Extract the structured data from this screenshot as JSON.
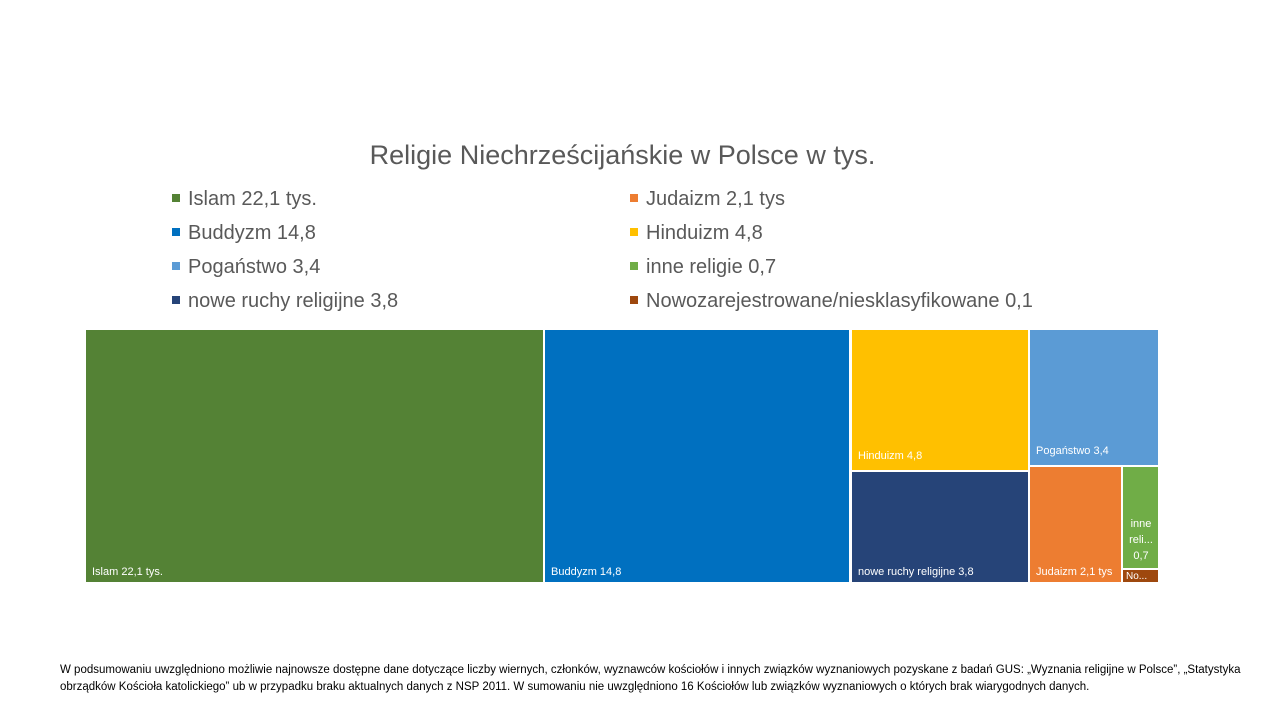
{
  "chart_data": {
    "type": "treemap",
    "title": "Religie Niechrześcijańskie w Polsce w tys.",
    "legend_placement": "top",
    "items": [
      {
        "name": "Islam  22,1 tys.",
        "value": 22.1,
        "label": "Islam  22,1 tys.",
        "color": "#548235"
      },
      {
        "name": "Buddyzm 14,8",
        "value": 14.8,
        "label": "Buddyzm 14,8",
        "color": "#0070C0"
      },
      {
        "name": "Hinduizm 4,8",
        "value": 4.8,
        "label": "Hinduizm 4,8",
        "color": "#FFC000"
      },
      {
        "name": "nowe ruchy religijne 3,8",
        "value": 3.8,
        "label": "nowe ruchy religijne 3,8",
        "color": "#264478"
      },
      {
        "name": "Pogaństwo 3,4",
        "value": 3.4,
        "label": "Pogaństwo 3,4",
        "color": "#5B9BD5"
      },
      {
        "name": "Judaizm  2,1 tys",
        "value": 2.1,
        "label": "Judaizm  2,1 tys",
        "color": "#ED7D31"
      },
      {
        "name": "inne religie  0,7",
        "value": 0.7,
        "label": "inne reli... 0,7",
        "color": "#70AD47"
      },
      {
        "name": "Nowozarejestrowane/niesklasyfikowane 0,1",
        "value": 0.1,
        "label": "No...",
        "color": "#9E480E"
      }
    ]
  },
  "note": "W podsumowaniu uwzględniono możliwie najnowsze dostępne dane dotyczące liczby wiernych, członków, wyznawców kościołów i innych związków wyznaniowych pozyskane z badań GUS: „Wyznania religijne w Polsce”, „Statystyka obrządków Kościoła katolickiego” ub w przypadku braku aktualnych danych z NSP 2011. W sumowaniu nie uwzględniono 16 Kościołów lub związków wyznaniowych o których brak wiarygodnych danych."
}
